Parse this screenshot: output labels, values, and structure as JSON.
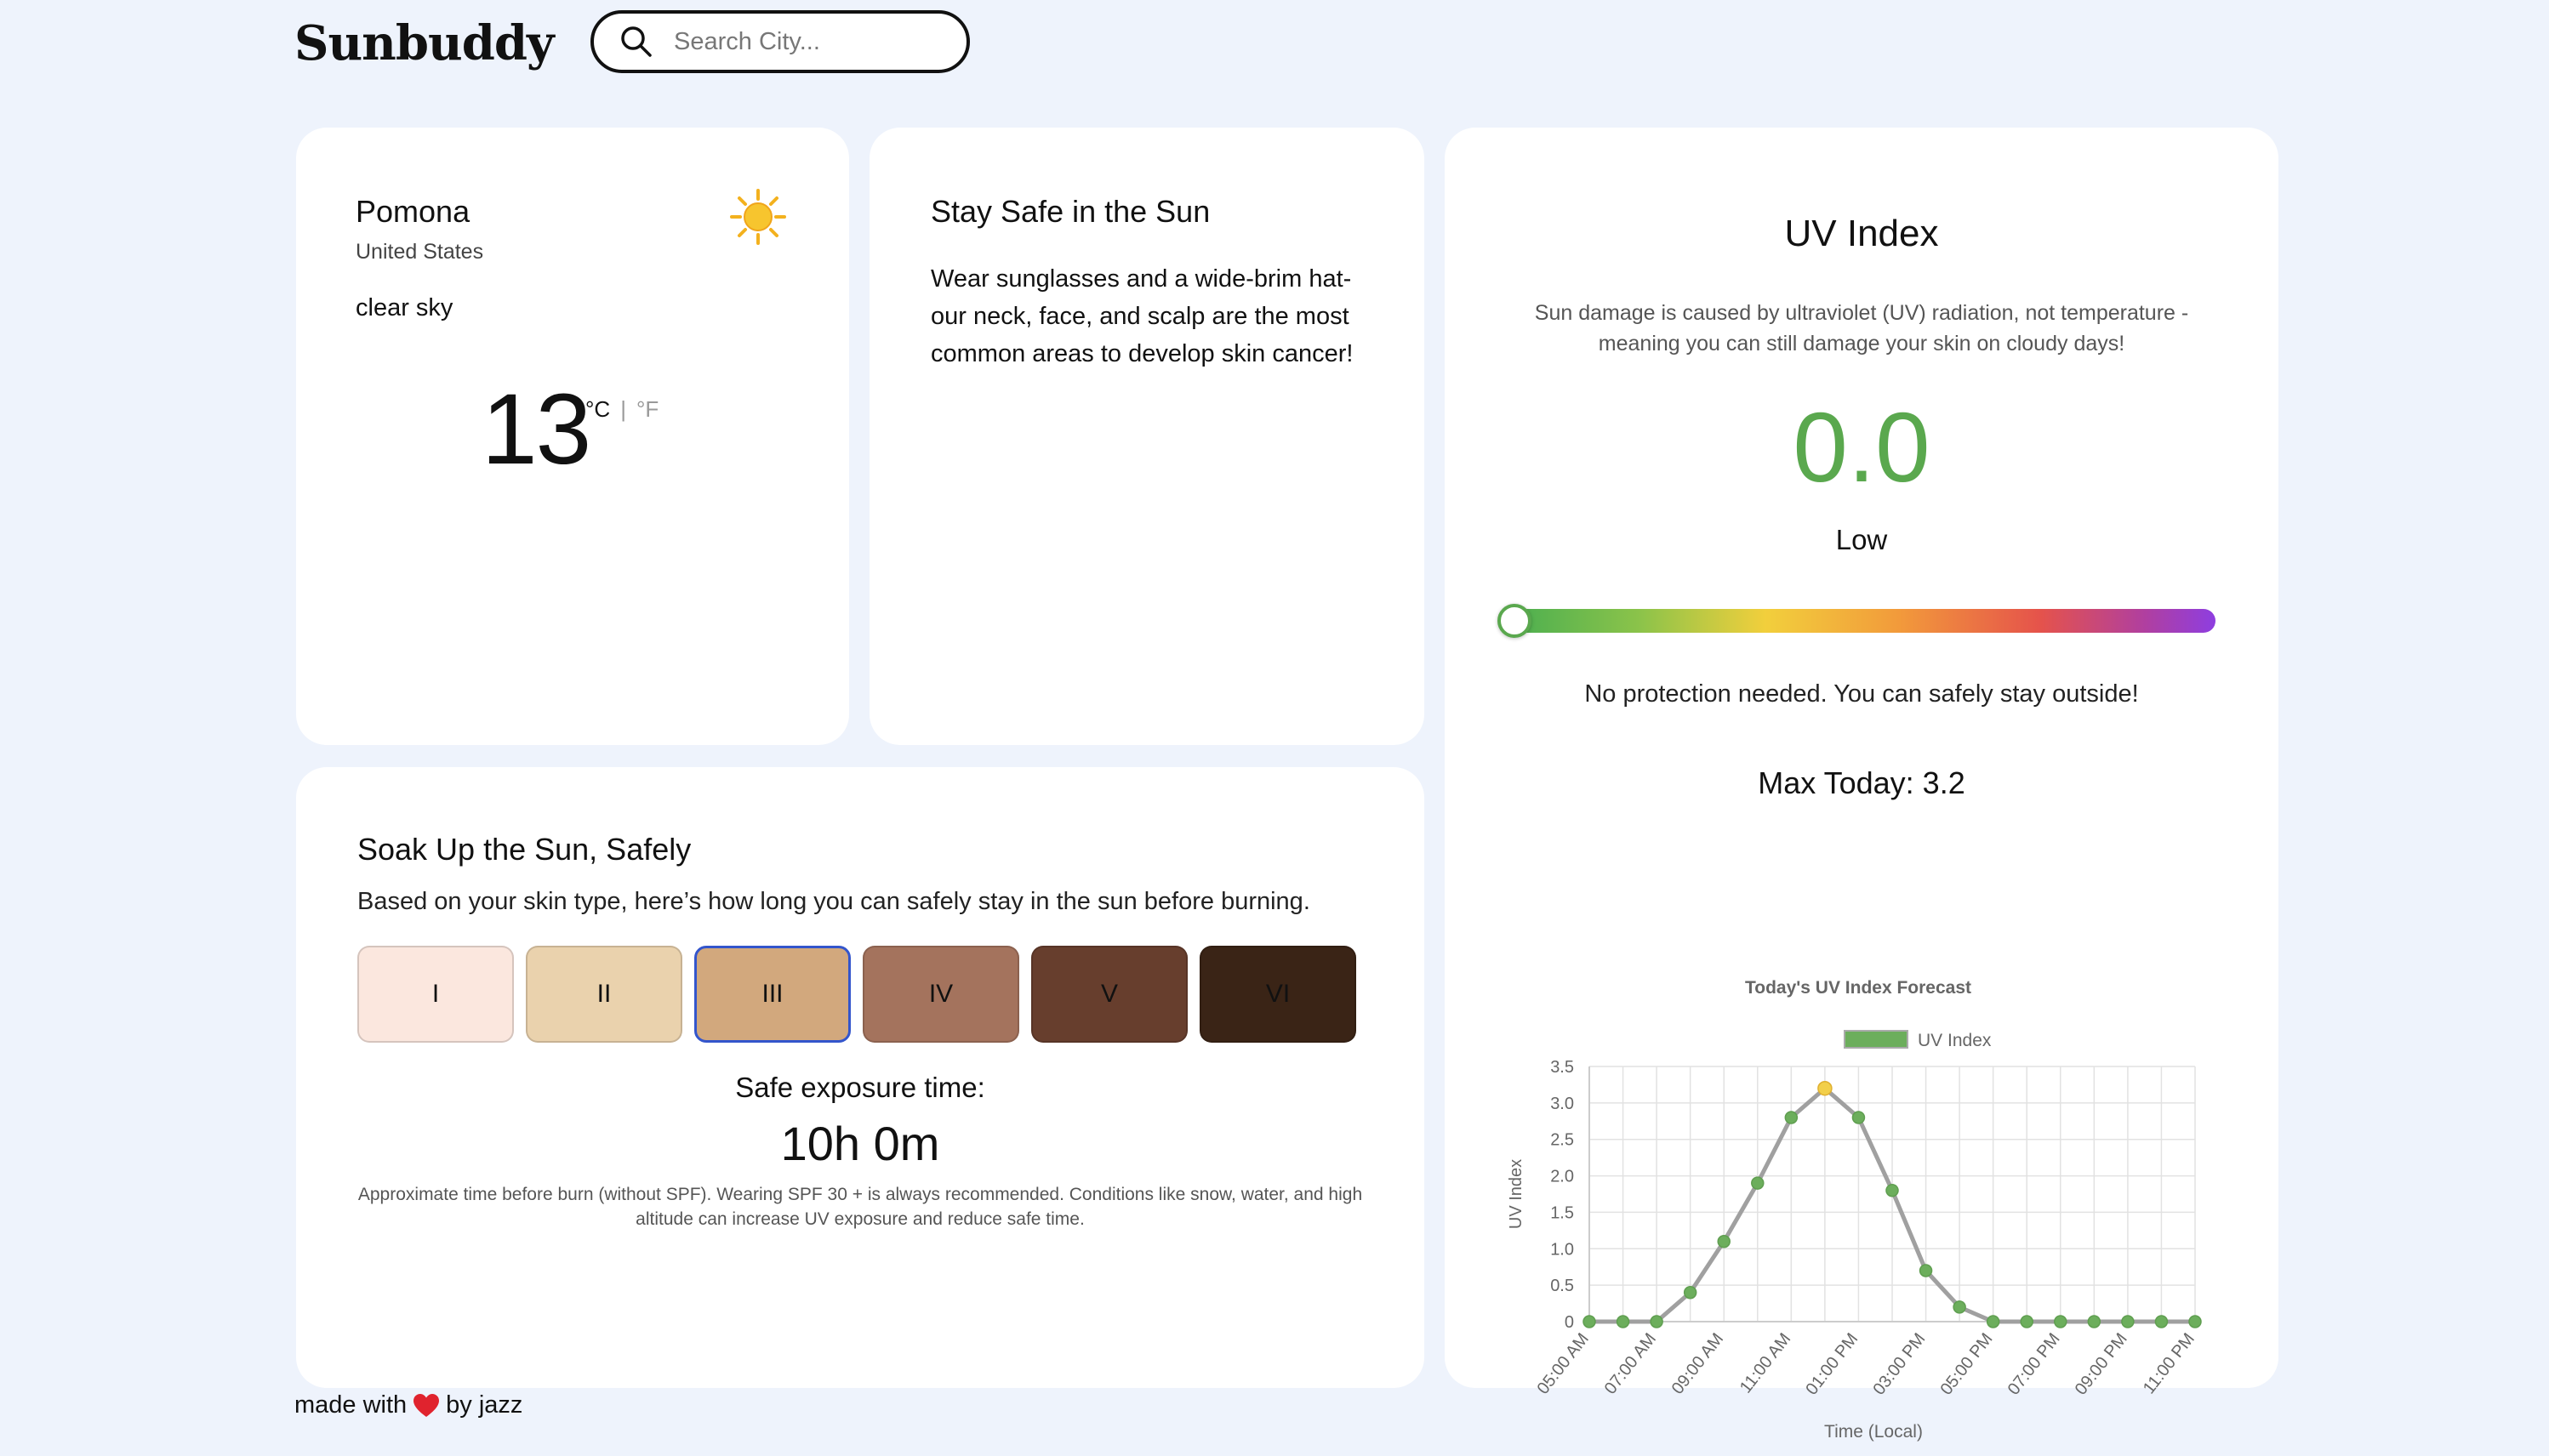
{
  "app": {
    "name": "Sunbuddy"
  },
  "search": {
    "placeholder": "Search City..."
  },
  "location": {
    "city": "Pomona",
    "country": "United States",
    "condition": "clear sky",
    "temperature": "13",
    "unit_c": "°C",
    "unit_sep": "|",
    "unit_f": "°F",
    "icon": "sun-icon"
  },
  "safety": {
    "title": "Stay Safe in the Sun",
    "text": "Wear sunglasses and a wide-brim hat- our neck, face, and scalp are the most common areas to develop skin cancer!"
  },
  "skin": {
    "title": "Soak Up the Sun, Safely",
    "subtitle": "Based on your skin type, here’s how long you can safely stay in the sun before burning.",
    "types": [
      {
        "label": "I",
        "color": "#fbe7de"
      },
      {
        "label": "II",
        "color": "#ead2ad"
      },
      {
        "label": "III",
        "color": "#d2a87d",
        "selected": true
      },
      {
        "label": "IV",
        "color": "#a4735d"
      },
      {
        "label": "V",
        "color": "#673e2d"
      },
      {
        "label": "VI",
        "color": "#3a2416"
      }
    ],
    "exposure_label": "Safe exposure time:",
    "exposure_value": "10h 0m",
    "note": "Approximate time before burn (without SPF). Wearing SPF 30 + is always recommended. Conditions like snow, water, and high altitude can increase UV exposure and reduce safe time."
  },
  "uv": {
    "title": "UV Index",
    "description": "Sun damage is caused by ultraviolet (UV) radiation, not temperature - meaning you can still damage your skin on cloudy days!",
    "value": "0.0",
    "level": "Low",
    "value_color": "#5aa84e",
    "scale_max": 11,
    "advice": "No protection needed. You can safely stay outside!",
    "max_today": "Max Today: 3.2"
  },
  "chart_data": {
    "type": "line",
    "title": "Today's UV Index Forecast",
    "xlabel": "Time (Local)",
    "ylabel": "UV Index",
    "ylim": [
      0,
      3.5
    ],
    "yticks": [
      "0",
      "0.5",
      "1.0",
      "1.5",
      "2.0",
      "2.5",
      "3.0",
      "3.5"
    ],
    "x": [
      "05:00 AM",
      "06:00 AM",
      "07:00 AM",
      "08:00 AM",
      "09:00 AM",
      "10:00 AM",
      "11:00 AM",
      "12:00 PM",
      "01:00 PM",
      "02:00 PM",
      "03:00 PM",
      "04:00 PM",
      "05:00 PM",
      "06:00 PM",
      "07:00 PM",
      "08:00 PM",
      "09:00 PM",
      "10:00 PM",
      "11:00 PM"
    ],
    "xtick_labels": [
      "05:00 AM",
      "07:00 AM",
      "09:00 AM",
      "11:00 AM",
      "01:00 PM",
      "03:00 PM",
      "05:00 PM",
      "07:00 PM",
      "09:00 PM",
      "11:00 PM"
    ],
    "series": [
      {
        "name": "UV Index",
        "values": [
          0,
          0,
          0,
          0.4,
          1.1,
          1.9,
          2.8,
          3.2,
          2.8,
          1.8,
          0.7,
          0.2,
          0,
          0,
          0,
          0,
          0,
          0,
          0
        ]
      }
    ],
    "highlight_index": 7,
    "grid": true,
    "legend": "top",
    "colors": {
      "line": "#a0a0a0",
      "point": "#6cae5c",
      "highlight": "#f2cf4a",
      "legend": "#6cae5c"
    }
  },
  "footer": {
    "prefix": "made with",
    "suffix": "by jazz",
    "icon": "heart-icon"
  }
}
